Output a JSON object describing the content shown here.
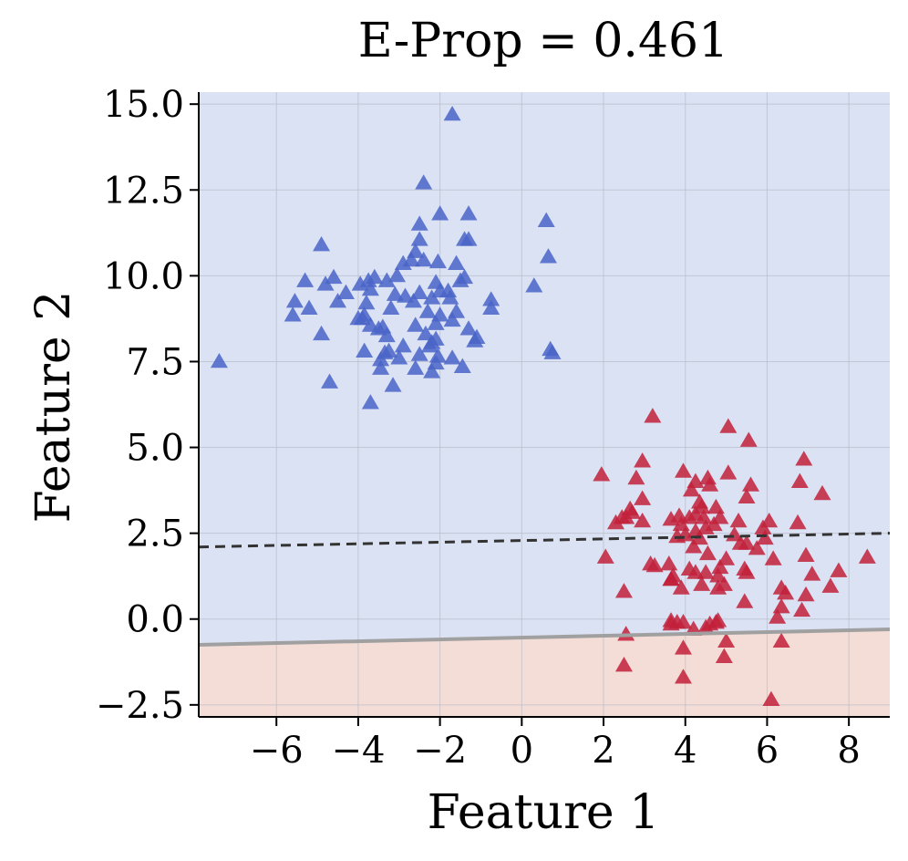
{
  "chart_data": {
    "type": "scatter",
    "title": "E-Prop = 0.461",
    "xlabel": "Feature 1",
    "ylabel": "Feature 2",
    "xlim": [
      -7.9,
      9.0
    ],
    "ylim": [
      -2.85,
      15.35
    ],
    "xticks": [
      -6,
      -4,
      -2,
      0,
      2,
      4,
      6,
      8
    ],
    "xtick_labels": [
      "−6",
      "−4",
      "−2",
      "0",
      "2",
      "4",
      "6",
      "8"
    ],
    "yticks": [
      -2.5,
      0.0,
      2.5,
      5.0,
      7.5,
      10.0,
      12.5,
      15.0
    ],
    "ytick_labels": [
      "−2.5",
      "0.0",
      "2.5",
      "5.0",
      "7.5",
      "10.0",
      "12.5",
      "15.0"
    ],
    "grid": true,
    "marker": "triangle",
    "colors": {
      "blue_region": "#dae2f4",
      "red_region": "#f4ddd6",
      "blue_points": "#4a64c8",
      "red_points": "#c2203a",
      "solid_boundary": "#a0a0a0",
      "dashed_boundary": "#333333",
      "grid": "#b8bcc8",
      "axis": "#000000"
    },
    "regions": [
      {
        "name": "blue-region",
        "color": "#dae2f4",
        "side": "above solid boundary"
      },
      {
        "name": "red-region",
        "color": "#f4ddd6",
        "side": "below solid boundary"
      }
    ],
    "boundaries": [
      {
        "name": "solid-boundary",
        "style": "solid",
        "color": "#a0a0a0",
        "x": [
          -7.9,
          9.0
        ],
        "y": [
          -0.75,
          -0.3
        ]
      },
      {
        "name": "dashed-boundary",
        "style": "dashed",
        "color": "#333333",
        "x": [
          -7.9,
          9.0
        ],
        "y": [
          2.1,
          2.5
        ]
      }
    ],
    "series": [
      {
        "name": "blue-cluster",
        "color": "#4a64c8",
        "points": [
          [
            -7.4,
            7.5
          ],
          [
            -1.7,
            14.7
          ],
          [
            -2.4,
            12.7
          ],
          [
            -2.0,
            11.8
          ],
          [
            -1.3,
            11.8
          ],
          [
            0.6,
            11.6
          ],
          [
            -2.5,
            11.5
          ],
          [
            -1.3,
            11.05
          ],
          [
            -1.4,
            11.05
          ],
          [
            -2.5,
            11.05
          ],
          [
            -4.9,
            10.9
          ],
          [
            -2.6,
            10.7
          ],
          [
            0.65,
            10.55
          ],
          [
            -2.7,
            10.45
          ],
          [
            -2.05,
            10.4
          ],
          [
            -2.4,
            10.45
          ],
          [
            -1.6,
            10.35
          ],
          [
            -2.9,
            10.35
          ],
          [
            -3.05,
            10.0
          ],
          [
            -3.6,
            9.95
          ],
          [
            -1.4,
            9.95
          ],
          [
            -1.5,
            9.85
          ],
          [
            -4.6,
            9.95
          ],
          [
            -3.3,
            9.85
          ],
          [
            -5.3,
            9.85
          ],
          [
            -3.75,
            9.85
          ],
          [
            -3.7,
            9.6
          ],
          [
            -2.1,
            9.8
          ],
          [
            -2.5,
            9.5
          ],
          [
            0.3,
            9.7
          ],
          [
            -4.8,
            9.75
          ],
          [
            -3.1,
            9.45
          ],
          [
            -3.95,
            9.75
          ],
          [
            -2.0,
            9.55
          ],
          [
            -1.8,
            9.55
          ],
          [
            -4.3,
            9.5
          ],
          [
            -2.2,
            9.35
          ],
          [
            -1.75,
            9.35
          ],
          [
            -2.85,
            9.4
          ],
          [
            -0.75,
            9.3
          ],
          [
            -5.55,
            9.25
          ],
          [
            -2.65,
            9.25
          ],
          [
            -4.5,
            9.25
          ],
          [
            -3.8,
            9.2
          ],
          [
            -3.2,
            9.05
          ],
          [
            -5.2,
            9.05
          ],
          [
            -0.75,
            9.05
          ],
          [
            -2.3,
            8.95
          ],
          [
            -2.0,
            8.85
          ],
          [
            -1.6,
            8.95
          ],
          [
            -3.85,
            8.85
          ],
          [
            -5.6,
            8.85
          ],
          [
            -2.1,
            8.6
          ],
          [
            -3.9,
            8.75
          ],
          [
            -4.0,
            8.75
          ],
          [
            -1.7,
            8.7
          ],
          [
            -2.6,
            8.55
          ],
          [
            -3.7,
            8.55
          ],
          [
            -3.4,
            8.5
          ],
          [
            -1.3,
            8.45
          ],
          [
            -3.5,
            8.45
          ],
          [
            -2.35,
            8.3
          ],
          [
            -4.9,
            8.3
          ],
          [
            -1.1,
            8.2
          ],
          [
            -3.3,
            8.25
          ],
          [
            -2.1,
            8.15
          ],
          [
            -1.15,
            8.1
          ],
          [
            -2.2,
            8.05
          ],
          [
            -2.25,
            7.95
          ],
          [
            -2.9,
            7.95
          ],
          [
            0.7,
            7.85
          ],
          [
            0.75,
            7.75
          ],
          [
            -3.25,
            7.8
          ],
          [
            -3.85,
            7.8
          ],
          [
            -3.35,
            7.75
          ],
          [
            -2.5,
            7.7
          ],
          [
            -2.05,
            7.65
          ],
          [
            -1.7,
            7.6
          ],
          [
            -3.0,
            7.6
          ],
          [
            -3.45,
            7.55
          ],
          [
            -2.1,
            7.45
          ],
          [
            -1.45,
            7.35
          ],
          [
            -2.2,
            7.2
          ],
          [
            -3.45,
            7.3
          ],
          [
            -2.6,
            7.3
          ],
          [
            -4.7,
            6.9
          ],
          [
            -3.15,
            6.8
          ],
          [
            -3.7,
            6.3
          ]
        ]
      },
      {
        "name": "red-cluster",
        "color": "#c2203a",
        "points": [
          [
            3.2,
            5.9
          ],
          [
            5.05,
            5.6
          ],
          [
            5.55,
            5.2
          ],
          [
            6.9,
            4.65
          ],
          [
            2.95,
            4.6
          ],
          [
            3.95,
            4.3
          ],
          [
            5.05,
            4.25
          ],
          [
            1.95,
            4.2
          ],
          [
            2.8,
            4.1
          ],
          [
            4.55,
            4.1
          ],
          [
            4.6,
            3.9
          ],
          [
            5.6,
            3.9
          ],
          [
            6.8,
            4.0
          ],
          [
            4.25,
            4.0
          ],
          [
            4.15,
            3.75
          ],
          [
            7.35,
            3.65
          ],
          [
            2.95,
            3.5
          ],
          [
            4.35,
            3.4
          ],
          [
            5.5,
            3.55
          ],
          [
            4.4,
            3.25
          ],
          [
            4.75,
            3.25
          ],
          [
            2.65,
            3.2
          ],
          [
            2.7,
            3.1
          ],
          [
            3.85,
            3.0
          ],
          [
            4.25,
            3.05
          ],
          [
            2.55,
            2.95
          ],
          [
            2.45,
            2.95
          ],
          [
            4.1,
            2.95
          ],
          [
            4.45,
            2.95
          ],
          [
            4.85,
            2.95
          ],
          [
            3.65,
            2.9
          ],
          [
            2.95,
            2.85
          ],
          [
            2.3,
            2.8
          ],
          [
            5.3,
            2.85
          ],
          [
            6.05,
            2.85
          ],
          [
            6.75,
            2.8
          ],
          [
            3.9,
            2.75
          ],
          [
            4.7,
            2.75
          ],
          [
            4.5,
            2.65
          ],
          [
            5.9,
            2.65
          ],
          [
            4.25,
            2.55
          ],
          [
            5.2,
            2.45
          ],
          [
            3.8,
            2.4
          ],
          [
            4.0,
            2.45
          ],
          [
            4.35,
            2.35
          ],
          [
            5.95,
            2.35
          ],
          [
            5.35,
            2.2
          ],
          [
            5.5,
            2.2
          ],
          [
            4.2,
            2.1
          ],
          [
            5.75,
            2.05
          ],
          [
            4.55,
            1.9
          ],
          [
            6.95,
            1.85
          ],
          [
            8.45,
            1.8
          ],
          [
            5.0,
            1.75
          ],
          [
            2.05,
            1.8
          ],
          [
            6.15,
            1.75
          ],
          [
            3.15,
            1.6
          ],
          [
            3.6,
            1.6
          ],
          [
            3.25,
            1.55
          ],
          [
            4.85,
            1.5
          ],
          [
            5.45,
            1.45
          ],
          [
            4.1,
            1.45
          ],
          [
            4.5,
            1.35
          ],
          [
            3.7,
            1.25
          ],
          [
            4.25,
            1.35
          ],
          [
            7.75,
            1.4
          ],
          [
            5.5,
            1.35
          ],
          [
            3.65,
            1.15
          ],
          [
            4.8,
            1.25
          ],
          [
            7.1,
            1.3
          ],
          [
            3.65,
            1.15
          ],
          [
            4.95,
            1.0
          ],
          [
            4.4,
            1.0
          ],
          [
            3.9,
            0.9
          ],
          [
            4.8,
            0.9
          ],
          [
            6.35,
            0.9
          ],
          [
            7.55,
            0.95
          ],
          [
            6.45,
            0.75
          ],
          [
            2.5,
            0.8
          ],
          [
            6.95,
            0.7
          ],
          [
            5.45,
            0.5
          ],
          [
            6.35,
            0.35
          ],
          [
            6.85,
            0.25
          ],
          [
            6.25,
            0.05
          ],
          [
            3.8,
            -0.1
          ],
          [
            3.65,
            -0.05
          ],
          [
            4.8,
            -0.05
          ],
          [
            3.65,
            -0.15
          ],
          [
            4.6,
            -0.15
          ],
          [
            4.75,
            -0.1
          ],
          [
            3.95,
            -0.1
          ],
          [
            4.2,
            -0.3
          ],
          [
            4.5,
            -0.25
          ],
          [
            2.55,
            -0.45
          ],
          [
            6.35,
            -0.65
          ],
          [
            3.95,
            -0.85
          ],
          [
            5.0,
            -0.65
          ],
          [
            4.95,
            -1.1
          ],
          [
            2.5,
            -1.35
          ],
          [
            3.95,
            -1.7
          ],
          [
            6.1,
            -2.35
          ]
        ]
      }
    ]
  }
}
